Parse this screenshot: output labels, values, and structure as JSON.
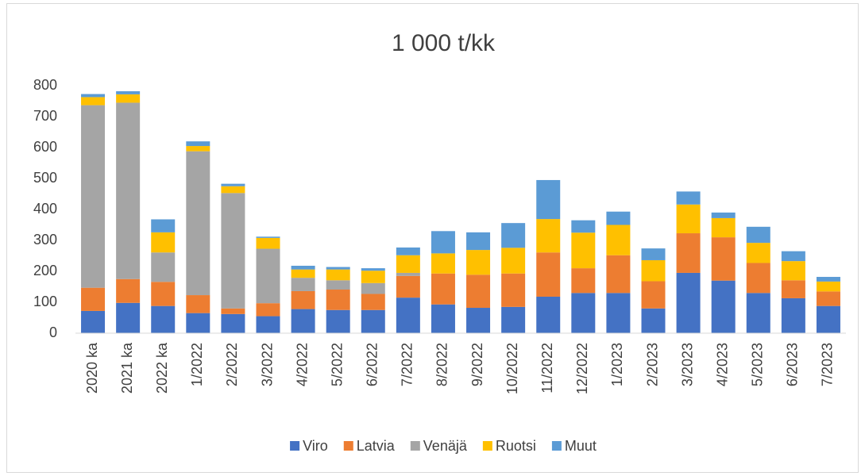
{
  "chart_data": {
    "type": "stacked_bar",
    "title": "1 000 t/kk",
    "categories": [
      "2020 ka",
      "2021 ka",
      "2022 ka",
      "1/2022",
      "2/2022",
      "3/2022",
      "4/2022",
      "5/2022",
      "6/2022",
      "7/2022",
      "8/2022",
      "9/2022",
      "10/2022",
      "11/2022",
      "12/2022",
      "1/2023",
      "2/2023",
      "3/2023",
      "4/2023",
      "5/2023",
      "6/2023",
      "7/2023"
    ],
    "series": [
      {
        "name": "Viro",
        "color": "#4472c4",
        "values": [
          72,
          98,
          88,
          65,
          62,
          55,
          78,
          75,
          75,
          115,
          93,
          82,
          85,
          118,
          130,
          130,
          80,
          195,
          170,
          130,
          113,
          88
        ]
      },
      {
        "name": "Latvia",
        "color": "#ed7d31",
        "values": [
          75,
          77,
          78,
          58,
          18,
          42,
          58,
          66,
          52,
          70,
          100,
          107,
          108,
          143,
          80,
          122,
          88,
          128,
          140,
          97,
          58,
          47
        ]
      },
      {
        "name": "Venäjä",
        "color": "#a5a5a5",
        "values": [
          590,
          570,
          95,
          465,
          373,
          176,
          43,
          30,
          35,
          10,
          0,
          0,
          0,
          0,
          0,
          0,
          0,
          0,
          0,
          0,
          0,
          0
        ]
      },
      {
        "name": "Ruotsi",
        "color": "#ffc000",
        "values": [
          26,
          27,
          65,
          17,
          22,
          35,
          27,
          35,
          40,
          57,
          65,
          80,
          83,
          108,
          115,
          98,
          68,
          93,
          62,
          65,
          62,
          32
        ]
      },
      {
        "name": "Muut",
        "color": "#5b9bd5",
        "values": [
          10,
          10,
          42,
          15,
          8,
          4,
          12,
          8,
          8,
          25,
          72,
          57,
          80,
          126,
          40,
          43,
          38,
          42,
          18,
          52,
          32,
          15
        ]
      }
    ],
    "ylim": [
      0,
      800
    ],
    "yticks": [
      0,
      100,
      200,
      300,
      400,
      500,
      600,
      700,
      800
    ],
    "grid": false,
    "legend": "bottom"
  }
}
